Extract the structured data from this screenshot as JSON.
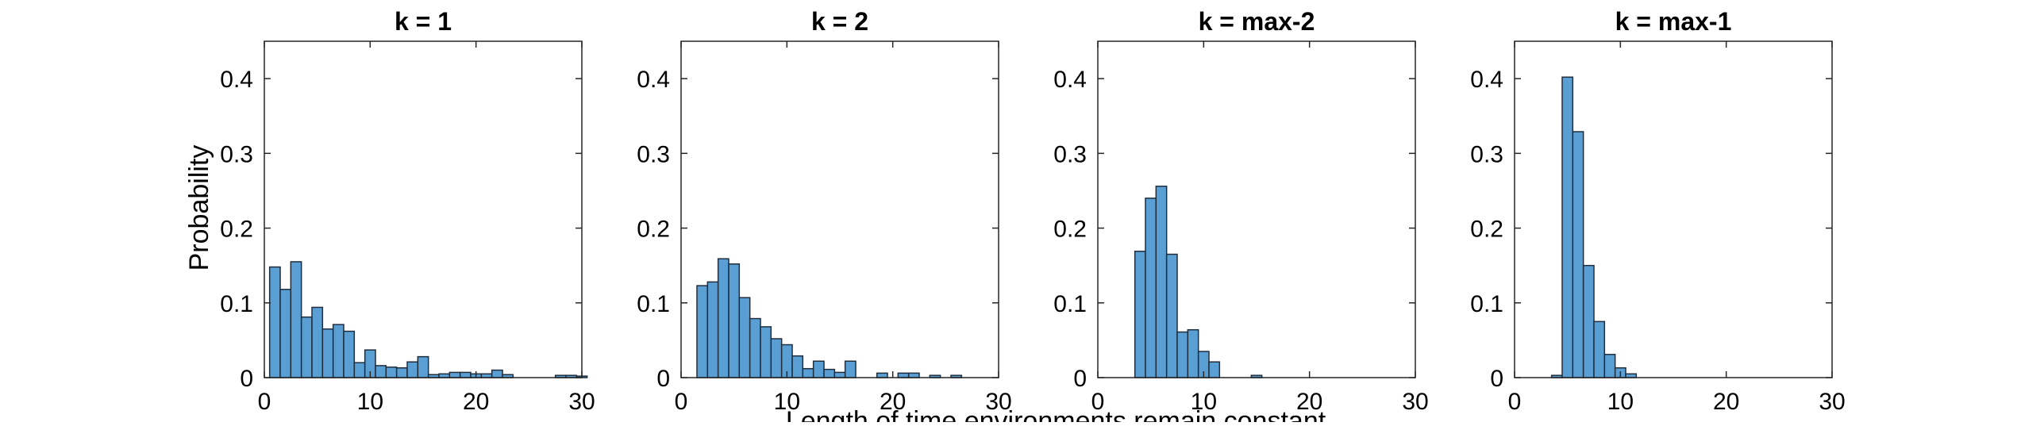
{
  "figure": {
    "ylabel": "Probability",
    "xlabel": "Length of time environments remain constant"
  },
  "colors": {
    "bar_fill": "#5a9fd4",
    "bar_stroke": "#1f2d3d",
    "axis": "#262626",
    "text": "#000000"
  },
  "chart_data": [
    {
      "type": "bar",
      "title": "k = 1",
      "xlim": [
        0,
        30
      ],
      "ylim": [
        0,
        0.45
      ],
      "xticks": [
        0,
        10,
        20,
        30
      ],
      "yticks": [
        0,
        0.1,
        0.2,
        0.3,
        0.4
      ],
      "bin_width": 1,
      "bin_start": 0.5,
      "values": [
        0.148,
        0.118,
        0.155,
        0.081,
        0.094,
        0.065,
        0.071,
        0.062,
        0.02,
        0.037,
        0.016,
        0.014,
        0.013,
        0.021,
        0.028,
        0.004,
        0.005,
        0.007,
        0.007,
        0.005,
        0.005,
        0.01,
        0.004,
        0,
        0,
        0,
        0,
        0.003,
        0.003,
        0.002
      ]
    },
    {
      "type": "bar",
      "title": "k = 2",
      "xlim": [
        0,
        30
      ],
      "ylim": [
        0,
        0.45
      ],
      "xticks": [
        0,
        10,
        20,
        30
      ],
      "yticks": [
        0,
        0.1,
        0.2,
        0.3,
        0.4
      ],
      "bin_width": 1,
      "bin_start": 1.5,
      "values": [
        0.123,
        0.128,
        0.159,
        0.152,
        0.107,
        0.079,
        0.068,
        0.052,
        0.044,
        0.029,
        0.012,
        0.022,
        0.011,
        0.007,
        0.022,
        0,
        0,
        0.006,
        0,
        0.006,
        0.006,
        0,
        0.003,
        0,
        0.003
      ]
    },
    {
      "type": "bar",
      "title": "k = max-2",
      "xlim": [
        0,
        30
      ],
      "ylim": [
        0,
        0.45
      ],
      "xticks": [
        0,
        10,
        20,
        30
      ],
      "yticks": [
        0,
        0.1,
        0.2,
        0.3,
        0.4
      ],
      "bin_width": 1,
      "bin_start": 3.5,
      "values": [
        0.169,
        0.24,
        0.256,
        0.165,
        0.061,
        0.064,
        0.035,
        0.021,
        0,
        0,
        0,
        0.003
      ]
    },
    {
      "type": "bar",
      "title": "k = max-1",
      "xlim": [
        0,
        30
      ],
      "ylim": [
        0,
        0.45
      ],
      "xticks": [
        0,
        10,
        20,
        30
      ],
      "yticks": [
        0,
        0.1,
        0.2,
        0.3,
        0.4
      ],
      "bin_width": 1,
      "bin_start": 3.5,
      "values": [
        0.003,
        0.402,
        0.329,
        0.15,
        0.075,
        0.031,
        0.013,
        0.005
      ]
    }
  ]
}
